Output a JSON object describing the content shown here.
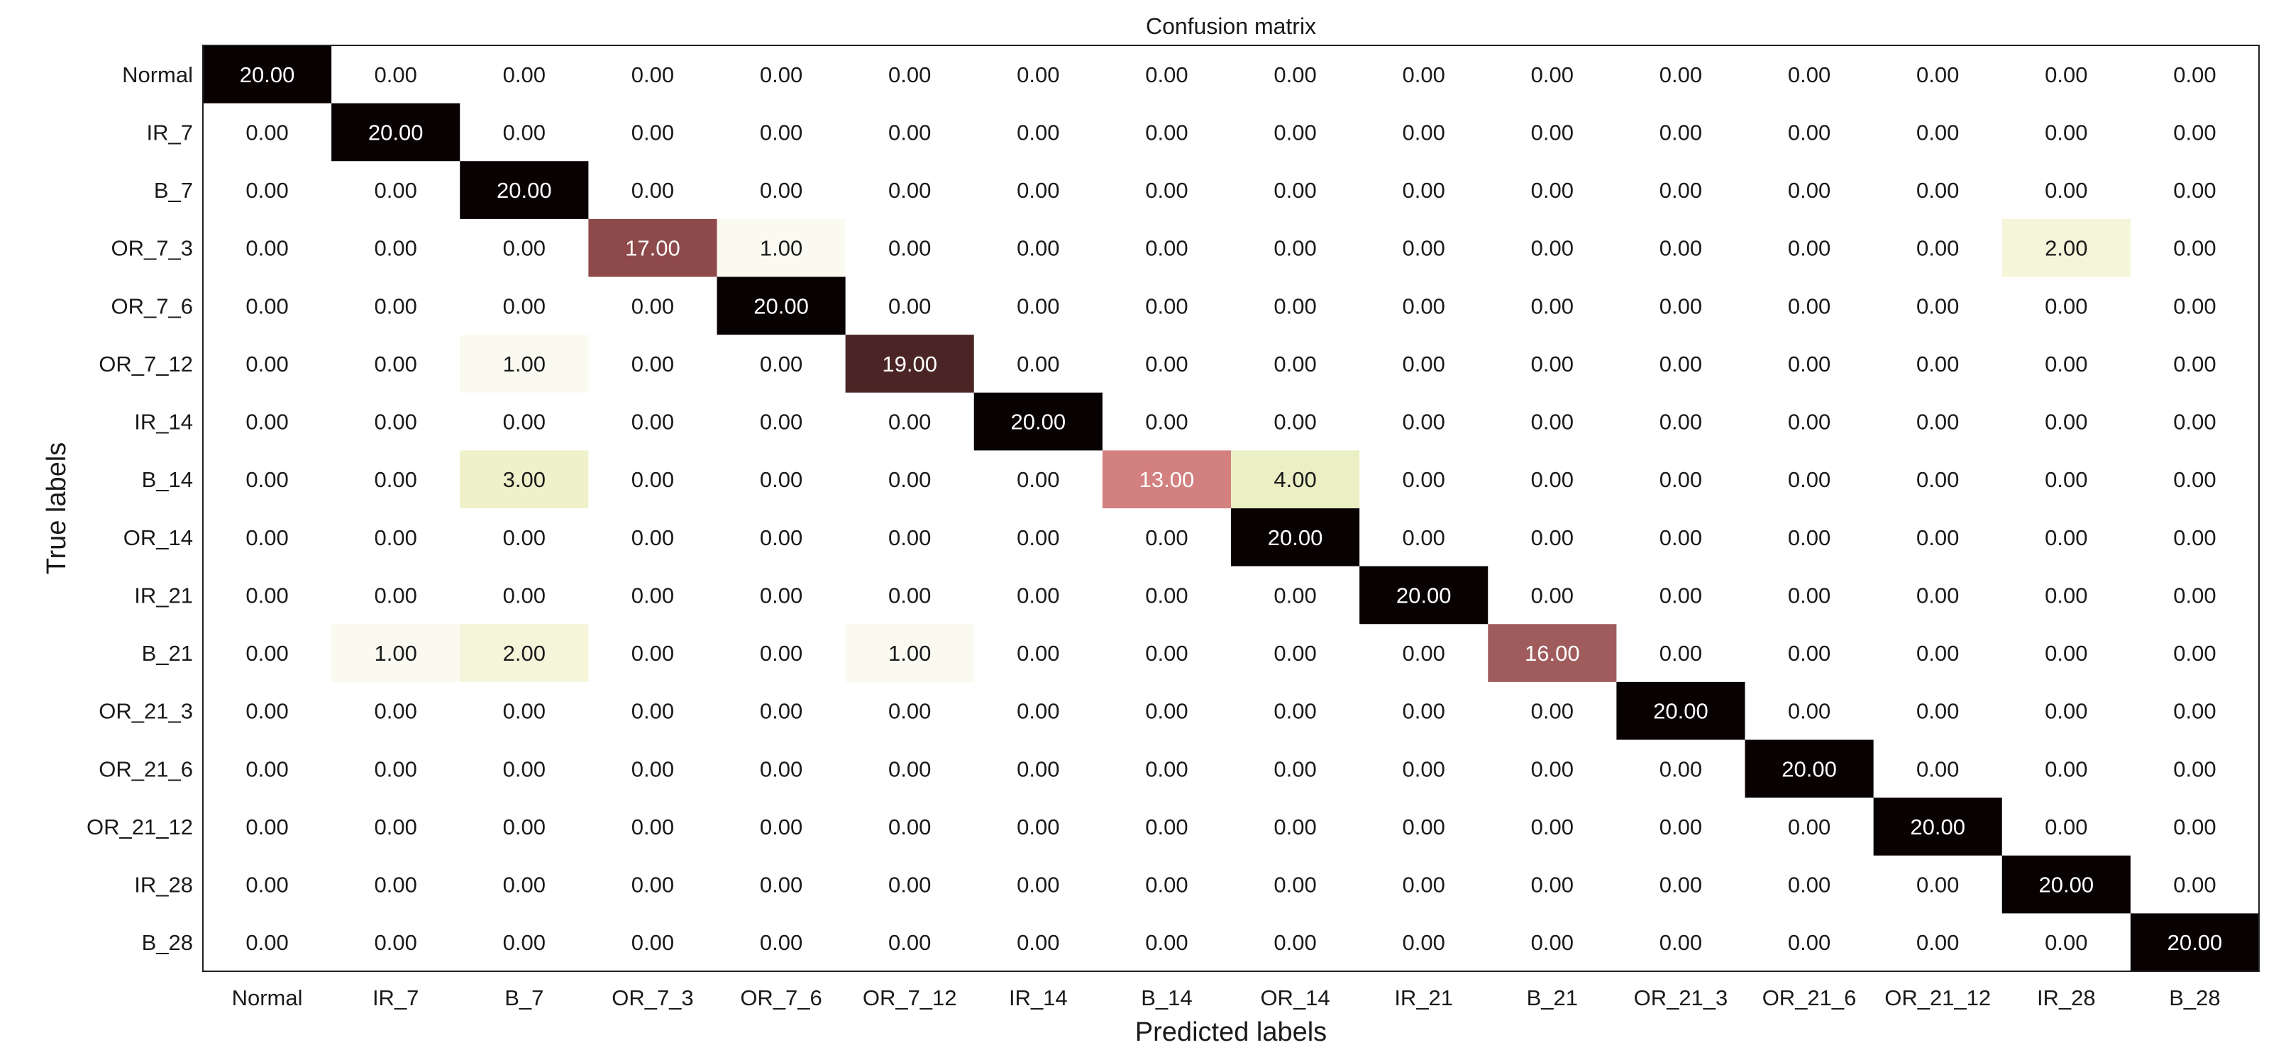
{
  "chart_data": {
    "type": "heatmap",
    "title": "Confusion matrix",
    "xlabel": "Predicted labels",
    "ylabel": "True labels",
    "x_categories": [
      "Normal",
      "IR_7",
      "B_7",
      "OR_7_3",
      "OR_7_6",
      "OR_7_12",
      "IR_14",
      "B_14",
      "OR_14",
      "IR_21",
      "B_21",
      "OR_21_3",
      "OR_21_6",
      "OR_21_12",
      "IR_28",
      "B_28"
    ],
    "y_categories": [
      "Normal",
      "IR_7",
      "B_7",
      "OR_7_3",
      "OR_7_6",
      "OR_7_12",
      "IR_14",
      "B_14",
      "OR_14",
      "IR_21",
      "B_21",
      "OR_21_3",
      "OR_21_6",
      "OR_21_12",
      "IR_28",
      "B_28"
    ],
    "values": [
      [
        20,
        0,
        0,
        0,
        0,
        0,
        0,
        0,
        0,
        0,
        0,
        0,
        0,
        0,
        0,
        0
      ],
      [
        0,
        20,
        0,
        0,
        0,
        0,
        0,
        0,
        0,
        0,
        0,
        0,
        0,
        0,
        0,
        0
      ],
      [
        0,
        0,
        20,
        0,
        0,
        0,
        0,
        0,
        0,
        0,
        0,
        0,
        0,
        0,
        0,
        0
      ],
      [
        0,
        0,
        0,
        17,
        1,
        0,
        0,
        0,
        0,
        0,
        0,
        0,
        0,
        0,
        2,
        0
      ],
      [
        0,
        0,
        0,
        0,
        20,
        0,
        0,
        0,
        0,
        0,
        0,
        0,
        0,
        0,
        0,
        0
      ],
      [
        0,
        0,
        1,
        0,
        0,
        19,
        0,
        0,
        0,
        0,
        0,
        0,
        0,
        0,
        0,
        0
      ],
      [
        0,
        0,
        0,
        0,
        0,
        0,
        20,
        0,
        0,
        0,
        0,
        0,
        0,
        0,
        0,
        0
      ],
      [
        0,
        0,
        3,
        0,
        0,
        0,
        0,
        13,
        4,
        0,
        0,
        0,
        0,
        0,
        0,
        0
      ],
      [
        0,
        0,
        0,
        0,
        0,
        0,
        0,
        0,
        20,
        0,
        0,
        0,
        0,
        0,
        0,
        0
      ],
      [
        0,
        0,
        0,
        0,
        0,
        0,
        0,
        0,
        0,
        20,
        0,
        0,
        0,
        0,
        0,
        0
      ],
      [
        0,
        1,
        2,
        0,
        0,
        1,
        0,
        0,
        0,
        0,
        16,
        0,
        0,
        0,
        0,
        0
      ],
      [
        0,
        0,
        0,
        0,
        0,
        0,
        0,
        0,
        0,
        0,
        0,
        20,
        0,
        0,
        0,
        0
      ],
      [
        0,
        0,
        0,
        0,
        0,
        0,
        0,
        0,
        0,
        0,
        0,
        0,
        20,
        0,
        0,
        0
      ],
      [
        0,
        0,
        0,
        0,
        0,
        0,
        0,
        0,
        0,
        0,
        0,
        0,
        0,
        20,
        0,
        0
      ],
      [
        0,
        0,
        0,
        0,
        0,
        0,
        0,
        0,
        0,
        0,
        0,
        0,
        0,
        0,
        20,
        0
      ],
      [
        0,
        0,
        0,
        0,
        0,
        0,
        0,
        0,
        0,
        0,
        0,
        0,
        0,
        0,
        0,
        20
      ]
    ],
    "value_format_decimals": 2,
    "color_range": [
      0,
      20
    ],
    "colormap_stops": [
      {
        "v": 0,
        "color": "#ffffff"
      },
      {
        "v": 1,
        "color": "#fafaf0"
      },
      {
        "v": 2,
        "color": "#f4f5d9"
      },
      {
        "v": 3,
        "color": "#eff1cb"
      },
      {
        "v": 4,
        "color": "#ebefc4"
      },
      {
        "v": 13,
        "color": "#d38080"
      },
      {
        "v": 16,
        "color": "#a05c5c"
      },
      {
        "v": 17,
        "color": "#8e4a4a"
      },
      {
        "v": 19,
        "color": "#4b2525"
      },
      {
        "v": 20,
        "color": "#080102"
      }
    ],
    "text_colors": {
      "dark_cell": "#ffffff",
      "light_cell": "#1a1a1a"
    },
    "grid": false,
    "legend": "none"
  }
}
